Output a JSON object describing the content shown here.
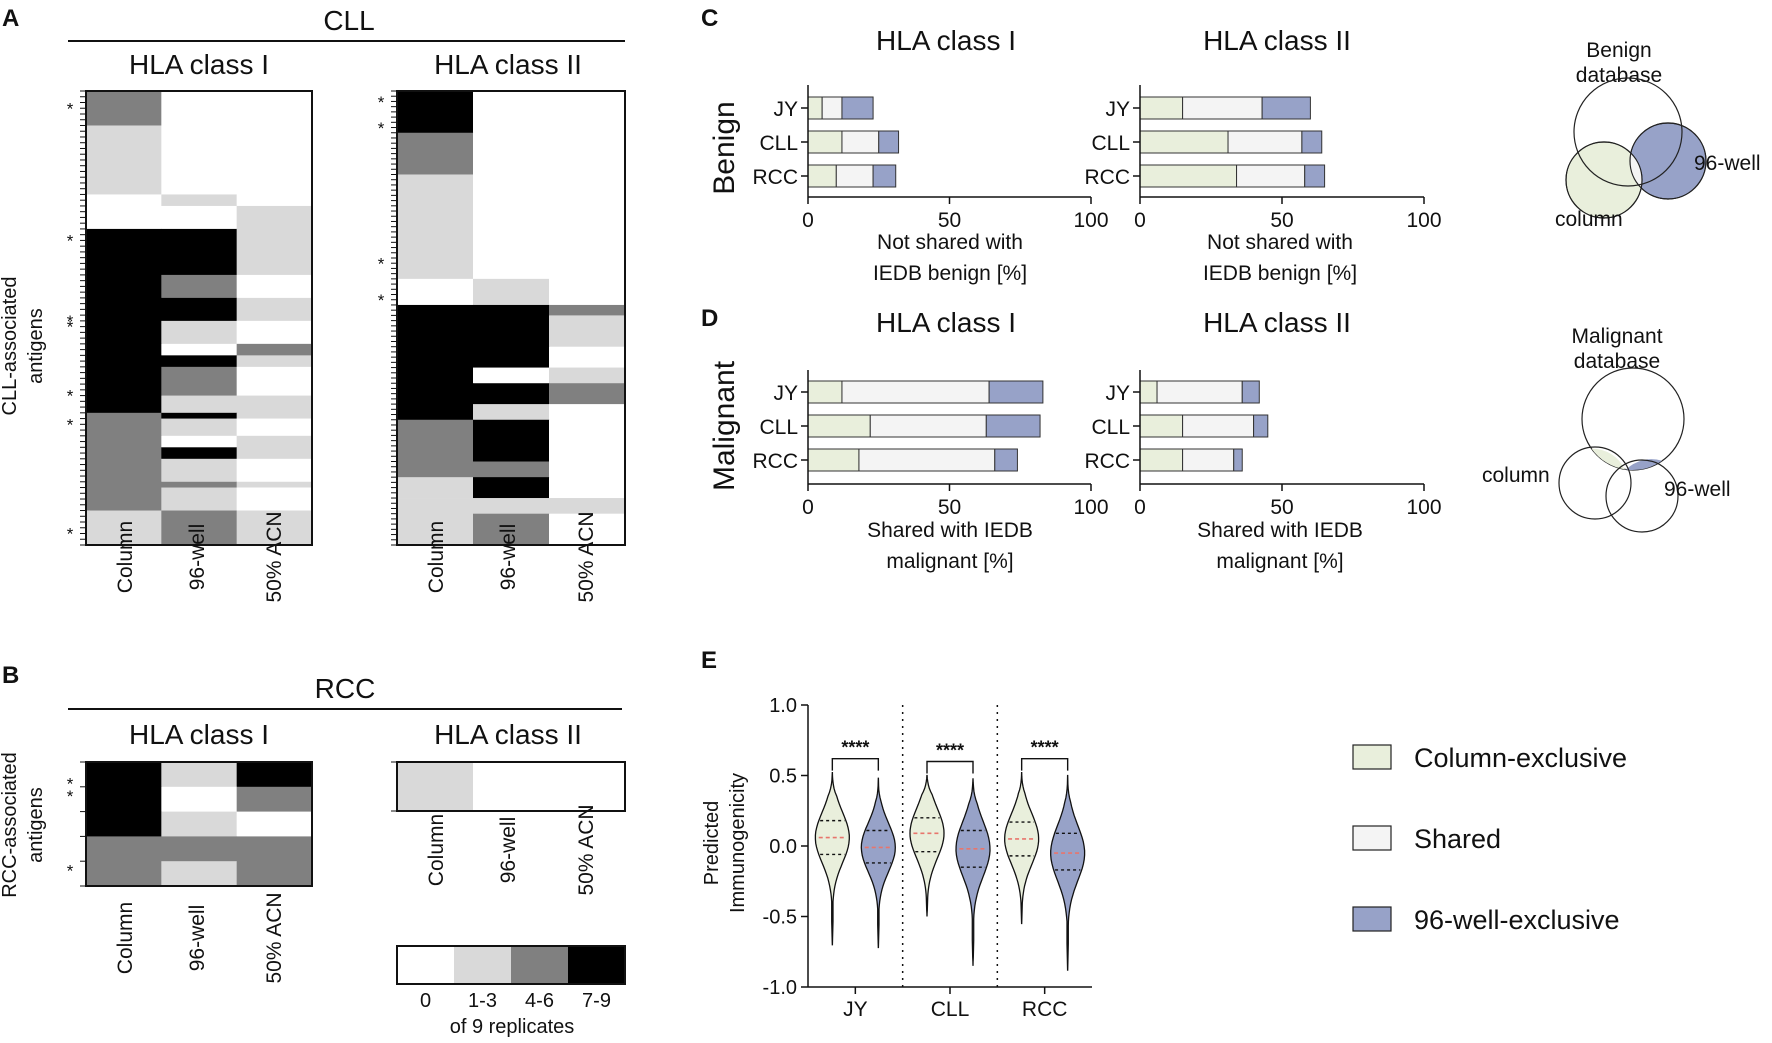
{
  "colors": {
    "level0": "#ffffff",
    "level1": "#d9d9d9",
    "level2": "#808080",
    "level3": "#000000",
    "column": "#e9efdc",
    "shared": "#f4f4f4",
    "well96": "#97a2c8",
    "median": "#e8756c"
  },
  "panels": {
    "A": "A",
    "B": "B",
    "C": "C",
    "D": "D",
    "E": "E"
  },
  "panel_a": {
    "title": "CLL",
    "ylabel_1": "CLL-associated",
    "ylabel_2": "antigens",
    "class1": "HLA class I",
    "class2": "HLA class II",
    "col_labels": [
      "Column",
      "96-well",
      "50% ACN"
    ]
  },
  "panel_b": {
    "title": "RCC",
    "ylabel_1": "RCC-associated",
    "ylabel_2": "antigens",
    "class1": "HLA class I",
    "class2": "HLA class II",
    "col_labels": [
      "Column",
      "96-well",
      "50% ACN"
    ]
  },
  "legend_heat": {
    "labels": [
      "0",
      "1-3",
      "4-6",
      "7-9"
    ],
    "caption": "of 9 replicates"
  },
  "panel_c": {
    "class1": "HLA class I",
    "class2": "HLA class II",
    "row_title": "Benign",
    "xlabel_1": "Not shared with",
    "xlabel_2": "IEDB benign [%]",
    "venn_title_1": "Benign",
    "venn_title_2": "database",
    "venn_column": "column",
    "venn_96": "96-well"
  },
  "panel_d": {
    "class1": "HLA class I",
    "class2": "HLA class II",
    "row_title": "Malignant",
    "xlabel_1": "Shared with IEDB",
    "xlabel_2": "malignant [%]",
    "venn_title_1": "Malignant",
    "venn_title_2": "database",
    "venn_column": "column",
    "venn_96": "96-well"
  },
  "panel_e": {
    "ylabel_1": "Predicted",
    "ylabel_2": "Immunogenicity",
    "significance": "****"
  },
  "legend_e": [
    "Column-exclusive",
    "Shared",
    "96-well-exclusive"
  ],
  "chart_data": [
    {
      "id": "A-class-I",
      "type": "heatmap",
      "title": "CLL HLA class I",
      "columns": [
        "Column",
        "96-well",
        "50% ACN"
      ],
      "blocks": [
        {
          "rows": 6,
          "values": [
            2,
            0,
            0
          ]
        },
        {
          "rows": 12,
          "values": [
            1,
            0,
            0
          ]
        },
        {
          "rows": 2,
          "values": [
            0,
            1,
            0
          ]
        },
        {
          "rows": 4,
          "values": [
            0,
            0,
            1
          ]
        },
        {
          "rows": 8,
          "values": [
            3,
            3,
            1
          ]
        },
        {
          "rows": 4,
          "values": [
            3,
            2,
            0
          ]
        },
        {
          "rows": 4,
          "values": [
            3,
            3,
            1
          ]
        },
        {
          "rows": 4,
          "values": [
            3,
            1,
            0
          ]
        },
        {
          "rows": 2,
          "values": [
            3,
            0,
            2
          ]
        },
        {
          "rows": 2,
          "values": [
            3,
            3,
            1
          ]
        },
        {
          "rows": 5,
          "values": [
            3,
            2,
            0
          ]
        },
        {
          "rows": 3,
          "values": [
            3,
            1,
            1
          ]
        },
        {
          "rows": 1,
          "values": [
            2,
            3,
            1
          ]
        },
        {
          "rows": 3,
          "values": [
            2,
            1,
            0
          ]
        },
        {
          "rows": 2,
          "values": [
            2,
            0,
            1
          ]
        },
        {
          "rows": 2,
          "values": [
            2,
            3,
            1
          ]
        },
        {
          "rows": 4,
          "values": [
            2,
            1,
            0
          ]
        },
        {
          "rows": 1,
          "values": [
            2,
            2,
            1
          ]
        },
        {
          "rows": 4,
          "values": [
            2,
            1,
            0
          ]
        },
        {
          "rows": 6,
          "values": [
            1,
            2,
            1
          ]
        }
      ],
      "asterisk_rows": [
        2,
        25,
        39,
        40,
        52,
        57,
        76
      ]
    },
    {
      "id": "A-class-II",
      "type": "heatmap",
      "title": "CLL HLA class II",
      "columns": [
        "Column",
        "96-well",
        "50% ACN"
      ],
      "blocks": [
        {
          "rows": 8,
          "values": [
            3,
            0,
            0
          ]
        },
        {
          "rows": 8,
          "values": [
            2,
            0,
            0
          ]
        },
        {
          "rows": 20,
          "values": [
            1,
            0,
            0
          ]
        },
        {
          "rows": 5,
          "values": [
            0,
            1,
            0
          ]
        },
        {
          "rows": 2,
          "values": [
            3,
            3,
            2
          ]
        },
        {
          "rows": 6,
          "values": [
            3,
            3,
            1
          ]
        },
        {
          "rows": 4,
          "values": [
            3,
            3,
            0
          ]
        },
        {
          "rows": 3,
          "values": [
            3,
            0,
            1
          ]
        },
        {
          "rows": 4,
          "values": [
            3,
            3,
            2
          ]
        },
        {
          "rows": 3,
          "values": [
            3,
            1,
            0
          ]
        },
        {
          "rows": 8,
          "values": [
            2,
            3,
            0
          ]
        },
        {
          "rows": 3,
          "values": [
            2,
            2,
            0
          ]
        },
        {
          "rows": 4,
          "values": [
            1,
            3,
            0
          ]
        },
        {
          "rows": 3,
          "values": [
            1,
            1,
            1
          ]
        },
        {
          "rows": 6,
          "values": [
            1,
            2,
            0
          ]
        }
      ],
      "asterisk_rows": [
        1,
        6,
        32,
        39
      ]
    },
    {
      "id": "B-class-I",
      "type": "heatmap",
      "title": "RCC HLA class I",
      "columns": [
        "Column",
        "96-well",
        "50% ACN"
      ],
      "blocks": [
        {
          "rows": 2,
          "values": [
            3,
            1,
            3
          ]
        },
        {
          "rows": 2,
          "values": [
            3,
            0,
            2
          ]
        },
        {
          "rows": 2,
          "values": [
            3,
            1,
            0
          ]
        },
        {
          "rows": 2,
          "values": [
            2,
            2,
            2
          ]
        },
        {
          "rows": 2,
          "values": [
            2,
            1,
            2
          ]
        }
      ],
      "asterisk_rows": [
        1,
        2,
        8
      ]
    },
    {
      "id": "B-class-II",
      "type": "heatmap",
      "title": "RCC HLA class II",
      "columns": [
        "Column",
        "96-well",
        "50% ACN"
      ],
      "blocks": [
        {
          "rows": 1,
          "values": [
            1,
            0,
            0
          ]
        }
      ],
      "asterisk_rows": []
    },
    {
      "id": "C-class-I",
      "type": "bar",
      "stacked": true,
      "orientation": "horizontal",
      "title": "HLA class I",
      "categories": [
        "JY",
        "CLL",
        "RCC"
      ],
      "series": [
        {
          "name": "Column-exclusive",
          "values": [
            5,
            12,
            10
          ]
        },
        {
          "name": "Shared",
          "values": [
            7,
            13,
            13
          ]
        },
        {
          "name": "96-well-exclusive",
          "values": [
            11,
            7,
            8
          ]
        }
      ],
      "xlim": [
        0,
        100
      ],
      "xticks": [
        0,
        50,
        100
      ],
      "xlabel": "Not shared with IEDB benign [%]"
    },
    {
      "id": "C-class-II",
      "type": "bar",
      "stacked": true,
      "orientation": "horizontal",
      "title": "HLA class II",
      "categories": [
        "JY",
        "CLL",
        "RCC"
      ],
      "series": [
        {
          "name": "Column-exclusive",
          "values": [
            15,
            31,
            34
          ]
        },
        {
          "name": "Shared",
          "values": [
            28,
            26,
            24
          ]
        },
        {
          "name": "96-well-exclusive",
          "values": [
            17,
            7,
            7
          ]
        }
      ],
      "xlim": [
        0,
        100
      ],
      "xticks": [
        0,
        50,
        100
      ],
      "xlabel": "Not shared with IEDB benign [%]"
    },
    {
      "id": "D-class-I",
      "type": "bar",
      "stacked": true,
      "orientation": "horizontal",
      "title": "HLA class I",
      "categories": [
        "JY",
        "CLL",
        "RCC"
      ],
      "series": [
        {
          "name": "Column-exclusive",
          "values": [
            12,
            22,
            18
          ]
        },
        {
          "name": "Shared",
          "values": [
            52,
            41,
            48
          ]
        },
        {
          "name": "96-well-exclusive",
          "values": [
            19,
            19,
            8
          ]
        }
      ],
      "xlim": [
        0,
        100
      ],
      "xticks": [
        0,
        50,
        100
      ],
      "xlabel": "Shared with IEDB malignant [%]"
    },
    {
      "id": "D-class-II",
      "type": "bar",
      "stacked": true,
      "orientation": "horizontal",
      "title": "HLA class II",
      "categories": [
        "JY",
        "CLL",
        "RCC"
      ],
      "series": [
        {
          "name": "Column-exclusive",
          "values": [
            6,
            15,
            15
          ]
        },
        {
          "name": "Shared",
          "values": [
            30,
            25,
            18
          ]
        },
        {
          "name": "96-well-exclusive",
          "values": [
            6,
            5,
            3
          ]
        }
      ],
      "xlim": [
        0,
        100
      ],
      "xticks": [
        0,
        50,
        100
      ],
      "xlabel": "Shared with IEDB malignant [%]"
    },
    {
      "id": "E",
      "type": "violin",
      "ylabel": "Predicted Immunogenicity",
      "ylim": [
        -1.0,
        1.0
      ],
      "yticks": [
        -1.0,
        -0.5,
        0.0,
        0.5,
        1.0
      ],
      "tick_labels": [
        "-1.0",
        "-0.5",
        "0.0",
        "0.5",
        "1.0"
      ],
      "categories": [
        "JY",
        "CLL",
        "RCC"
      ],
      "series": [
        {
          "name": "Column-exclusive",
          "min": [
            -0.7,
            -0.5,
            -0.55
          ],
          "q1": [
            -0.06,
            -0.04,
            -0.07
          ],
          "median": [
            0.06,
            0.09,
            0.05
          ],
          "q3": [
            0.18,
            0.2,
            0.17
          ],
          "max": [
            0.52,
            0.5,
            0.52
          ]
        },
        {
          "name": "96-well-exclusive",
          "min": [
            -0.72,
            -0.85,
            -0.88
          ],
          "q1": [
            -0.12,
            -0.15,
            -0.17
          ],
          "median": [
            -0.01,
            -0.02,
            -0.05
          ],
          "q3": [
            0.11,
            0.11,
            0.09
          ],
          "max": [
            0.48,
            0.48,
            0.5
          ]
        }
      ],
      "significance": [
        "****",
        "****",
        "****"
      ]
    }
  ]
}
